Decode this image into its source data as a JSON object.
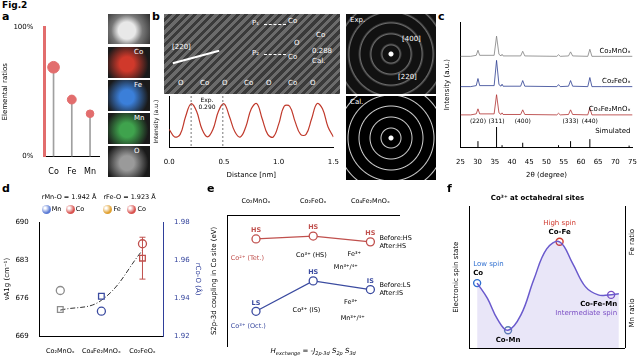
{
  "figure_label": "Fig.2",
  "chart_data": [
    {
      "panel": "a",
      "type": "lollipop",
      "y_label": "Elemental ratios",
      "categories": [
        "Co",
        "Fe",
        "Mn"
      ],
      "values": [
        69,
        44,
        33
      ],
      "color": "#e26d6d",
      "ylim": [
        0,
        100
      ],
      "yticks": [
        {
          "value": 0,
          "label": "0%"
        },
        {
          "value": 100,
          "label": "100%"
        }
      ],
      "grid": false,
      "maps": [
        {
          "label": "Co",
          "color": "#d0392b"
        },
        {
          "label": "Fe",
          "color": "#3b7fd9"
        },
        {
          "label": "Mn",
          "color": "#3fa34d"
        },
        {
          "label": "O",
          "color": "#9a9a9a"
        }
      ]
    },
    {
      "panel": "b",
      "type": "line",
      "x_label": "Distance [nm]",
      "y_label": "Intensity (a.u.)",
      "x": [
        0,
        0.05,
        0.1,
        0.15,
        0.2,
        0.25,
        0.3,
        0.35,
        0.4,
        0.45,
        0.5,
        0.55,
        0.6,
        0.65,
        0.7,
        0.75,
        0.8,
        0.85,
        0.9,
        0.95,
        1.0,
        1.05,
        1.1,
        1.15,
        1.2,
        1.25,
        1.3,
        1.35,
        1.4,
        1.45,
        1.5
      ],
      "values": [
        0.35,
        0.2,
        0.25,
        0.6,
        0.85,
        0.7,
        0.35,
        0.2,
        0.35,
        0.7,
        0.85,
        0.6,
        0.3,
        0.2,
        0.4,
        0.75,
        0.85,
        0.55,
        0.25,
        0.2,
        0.45,
        0.8,
        0.8,
        0.5,
        0.25,
        0.25,
        0.55,
        0.85,
        0.75,
        0.4,
        0.2
      ],
      "color": "#c0392b",
      "line_style": "solid",
      "xlim": [
        0,
        1.5
      ],
      "xticks": [
        {
          "value": 0,
          "label": "0.0"
        },
        {
          "value": 0.5,
          "label": "0.5"
        },
        {
          "value": 1,
          "label": "1.0"
        },
        {
          "value": 1.5,
          "label": "1.5"
        }
      ],
      "ylim": [
        0,
        1
      ],
      "tick_labels": "x",
      "grid": false,
      "exp_lines": [
        0.2,
        0.49
      ],
      "exp_label": "Exp.",
      "exp_spacing": "0.290",
      "image": {
        "direction": "[220]",
        "planes": [
          "P₁",
          "P₂"
        ],
        "atoms": [
          "Co",
          "Co",
          "O",
          "Co"
        ],
        "spacing": "0.288",
        "spacing_note": "Cal.",
        "atom_row": [
          "O",
          "Co",
          "O",
          "Co",
          "O",
          "Co",
          "O"
        ]
      },
      "saed": {
        "top_label": "Exp.",
        "spots": [
          "[400]",
          "[220]"
        ],
        "bottom_label": "Cal."
      }
    },
    {
      "panel": "c",
      "type": "line",
      "x_label": "2θ (degree)",
      "y_label": "Intensity (a.u.)",
      "x": [
        25,
        28,
        29.6,
        30.1,
        30.6,
        34.8,
        35.5,
        36.2,
        36.8,
        37.1,
        37.4,
        42.5,
        43.1,
        43.7,
        53,
        53.5,
        54,
        56.4,
        57,
        57.6,
        62,
        62.6,
        63.2,
        66,
        75
      ],
      "series": [
        {
          "name": "Co₂MnOₓ",
          "color": "#808080",
          "values": [
            4.5,
            4.5,
            4.55,
            4.8,
            4.55,
            4.55,
            5.5,
            4.6,
            4.52,
            4.6,
            4.52,
            4.52,
            4.75,
            4.52,
            4.5,
            4.58,
            4.5,
            4.52,
            4.72,
            4.52,
            4.5,
            4.85,
            4.5,
            4.5,
            4.5
          ]
        },
        {
          "name": "Co₂FeOₓ",
          "color": "#2c3e91",
          "values": [
            3.0,
            3.0,
            3.05,
            3.4,
            3.05,
            3.05,
            4.3,
            3.1,
            3.02,
            3.12,
            3.02,
            3.02,
            3.3,
            3.02,
            3.0,
            3.1,
            3.0,
            3.02,
            3.3,
            3.02,
            3.0,
            3.45,
            3.0,
            3.0,
            3.0
          ]
        },
        {
          "name": "Co₄Fe₂MnOₓ",
          "color": "#b03030",
          "values": [
            1.6,
            1.6,
            1.65,
            1.9,
            1.65,
            1.65,
            2.6,
            1.7,
            1.62,
            1.7,
            1.62,
            1.62,
            1.85,
            1.62,
            1.6,
            1.68,
            1.6,
            1.62,
            1.85,
            1.62,
            1.6,
            1.95,
            1.6,
            1.6,
            1.6
          ]
        }
      ],
      "simulated": {
        "name": "Simulated",
        "color": "#000000",
        "x": [
          30.1,
          35.5,
          37.1,
          43.1,
          53.5,
          57.0,
          62.6,
          74.0
        ],
        "values": [
          0.3,
          1.0,
          0.1,
          0.22,
          0.1,
          0.3,
          0.4,
          0.08
        ]
      },
      "peaks": [
        {
          "label": "(220)",
          "x": 30.1
        },
        {
          "label": "(311)",
          "x": 35.5
        },
        {
          "label": "(400)",
          "x": 43.1
        },
        {
          "label": "(333)",
          "x": 57.0
        },
        {
          "label": "(440)",
          "x": 62.6
        }
      ],
      "xlim": [
        25,
        75
      ],
      "xticks": [
        25,
        30,
        35,
        40,
        45,
        50,
        55,
        60,
        65,
        70,
        75
      ],
      "ylim": [
        0,
        6.2
      ],
      "tick_labels": "x",
      "grid": false
    },
    {
      "panel": "d",
      "type": "scatter",
      "categories": [
        "Co₂MnOₓ",
        "Co₄Fe₂MnOₓ",
        "Co₂FeOₓ"
      ],
      "y_label": "νA1g (cm⁻¹)",
      "y2_label": "rCo-O (Å)",
      "ylim": [
        669,
        690
      ],
      "yticks": [
        669,
        676,
        683,
        690
      ],
      "y2lim": [
        1.92,
        1.98
      ],
      "y2ticks": [
        1.92,
        1.94,
        1.96,
        1.98
      ],
      "grid": false,
      "series": [
        {
          "marker": "circle",
          "colors": [
            "#8c8c8c",
            "#3b4ba0",
            "#c0504d"
          ],
          "values": [
            677.4,
            673.6,
            686.0
          ]
        },
        {
          "marker": "square",
          "axis": "y2",
          "colors": [
            "#8c8c8c",
            "#3b4ba0",
            "#c0504d"
          ],
          "values": [
            1.934,
            1.941,
            1.961
          ],
          "errors": [
            null,
            null,
            0.011
          ]
        },
        {
          "type": "line",
          "line_style": "dashdot",
          "color": "#333333",
          "values": [
            673.8,
            675.6,
            684.8
          ]
        }
      ],
      "annotations": [
        {
          "text": "rMn-O = 1.942 Å",
          "atoms": [
            "Mn",
            "Co"
          ]
        },
        {
          "text": "rFe-O = 1.923 Å",
          "atoms": [
            "Fe",
            "Co"
          ]
        }
      ]
    },
    {
      "panel": "e",
      "type": "line",
      "y_label": "S2p-3d coupling in Co site (eV)",
      "categories": [
        "Co₂MnOₓ",
        "Co₂FeOₓ",
        "Co₄Fe₂MnOₓ"
      ],
      "ylim": [
        1,
        10
      ],
      "tick_labels": "x",
      "grid": false,
      "series": [
        {
          "name": "Co²⁺ (Tet.)",
          "color": "#c0504d",
          "marker": "circle",
          "values": [
            8.4,
            8.6,
            8.2
          ],
          "spin_labels": [
            "HS",
            "HS",
            "HS"
          ],
          "notes": [
            "Before:HS",
            "After:HS"
          ]
        },
        {
          "name": "Co³⁺ (Oct.)",
          "color": "#3b4ba0",
          "marker": "circle",
          "values": [
            3.4,
            5.5,
            4.9
          ],
          "spin_labels": [
            "LS",
            "HS",
            "IS"
          ],
          "notes": [
            "Before:LS",
            "After:IS"
          ]
        }
      ],
      "annotations": {
        "upper": [
          "Co³⁺ (HS)",
          "Fe³⁺",
          "Mn³⁺/⁴⁺"
        ],
        "lower": [
          "Co³⁺ (IS)",
          "Mn³⁺/⁴⁺",
          "Fe³⁺"
        ],
        "formula": [
          {
            "text": "H",
            "sub": "exchange"
          },
          {
            "text": " = -J",
            "sub": "2p-3d"
          },
          {
            "text": " S",
            "sub": "2p"
          },
          {
            "text": " S",
            "sub": "3d"
          }
        ]
      }
    },
    {
      "panel": "f",
      "type": "line",
      "title": "Co³⁺ at octahedral sites",
      "y_label": "Electronic spin state",
      "right_labels": [
        "Fe ratio",
        "Mn ratio"
      ],
      "x": [
        0.3,
        0.7,
        1.1,
        1.5,
        2.0,
        2.5,
        3.0,
        3.5,
        4.0,
        4.5,
        5.0,
        5.4,
        5.8
      ],
      "values": [
        0.55,
        0.42,
        0.24,
        0.15,
        0.28,
        0.58,
        0.84,
        0.9,
        0.72,
        0.52,
        0.45,
        0.45,
        0.46
      ],
      "color": "#6a5acd",
      "xlim": [
        0,
        6
      ],
      "ylim": [
        0,
        1.2
      ],
      "tick_labels": false,
      "grid": false,
      "points": [
        {
          "x": 0.3,
          "y": 0.55,
          "label": "Co",
          "note": "Low spin"
        },
        {
          "x": 1.5,
          "y": 0.15,
          "label": "Co-Mn"
        },
        {
          "x": 3.5,
          "y": 0.9,
          "label": "Co-Fe",
          "note": "High spin"
        },
        {
          "x": 5.5,
          "y": 0.45,
          "label": "Co-Fe-Mn",
          "note": "Intermediate spin"
        }
      ],
      "colors": [
        "#2f6fd0",
        "#5a7fb0",
        "#d03a2f",
        "#7b4fc4"
      ]
    }
  ]
}
